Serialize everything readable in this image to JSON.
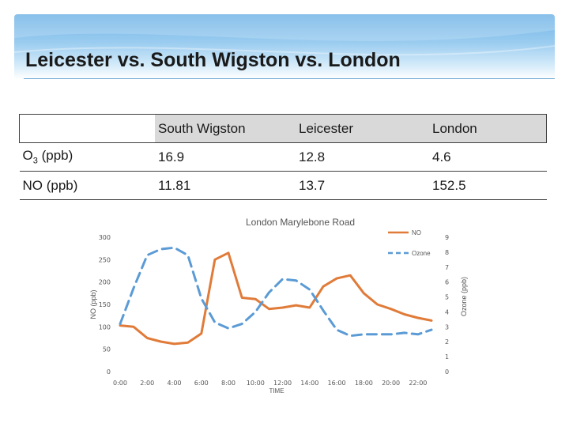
{
  "slide": {
    "title": "Leicester vs. South Wigston vs. London",
    "colors": {
      "banner": "#6fb3e6",
      "no_series": "#e07b39",
      "ozone_series": "#5b9bd5"
    }
  },
  "table": {
    "headers": [
      "",
      "South Wigston",
      "Leicester",
      "London"
    ],
    "rows": [
      {
        "label_main": "O",
        "label_sub": "3",
        "label_rest": " (ppb)",
        "values": [
          "16.9",
          "12.8",
          "4.6"
        ]
      },
      {
        "label_main": "NO (ppb)",
        "label_sub": "",
        "label_rest": "",
        "values": [
          "11.81",
          "13.7",
          "152.5"
        ]
      }
    ]
  },
  "chart_data": {
    "type": "line",
    "title": "London Marylebone Road",
    "xlabel": "TIME",
    "ylabel_left": "NO (ppb)",
    "ylabel_right": "Ozone (ppb)",
    "x_ticks": [
      "0:00",
      "2:00",
      "4:00",
      "6:00",
      "8:00",
      "10:00",
      "12:00",
      "14:00",
      "16:00",
      "18:00",
      "20:00",
      "22:00"
    ],
    "y_left_ticks": [
      "0",
      "50",
      "100",
      "150",
      "200",
      "250",
      "300"
    ],
    "y_right_ticks": [
      "0",
      "1",
      "2",
      "3",
      "4",
      "5",
      "6",
      "7",
      "8",
      "9"
    ],
    "ylim_left": [
      0,
      300
    ],
    "ylim_right": [
      0,
      9
    ],
    "legend_position": "top-right",
    "x": [
      0,
      1,
      2,
      3,
      4,
      5,
      6,
      7,
      8,
      9,
      10,
      11,
      12,
      13,
      14,
      15,
      16,
      17,
      18,
      19,
      20,
      21,
      22,
      23
    ],
    "series": [
      {
        "name": "NO",
        "axis": "left",
        "style": "solid",
        "values": [
          103,
          100,
          75,
          67,
          62,
          65,
          85,
          250,
          265,
          165,
          162,
          140,
          143,
          148,
          143,
          190,
          208,
          215,
          175,
          150,
          140,
          128,
          120,
          114
        ]
      },
      {
        "name": "Ozone",
        "axis": "right",
        "style": "dashed",
        "values": [
          3.2,
          5.6,
          7.8,
          8.2,
          8.3,
          7.8,
          4.9,
          3.3,
          2.9,
          3.2,
          4.0,
          5.3,
          6.2,
          6.1,
          5.5,
          4.1,
          2.8,
          2.4,
          2.5,
          2.5,
          2.5,
          2.6,
          2.5,
          2.8
        ]
      }
    ]
  }
}
